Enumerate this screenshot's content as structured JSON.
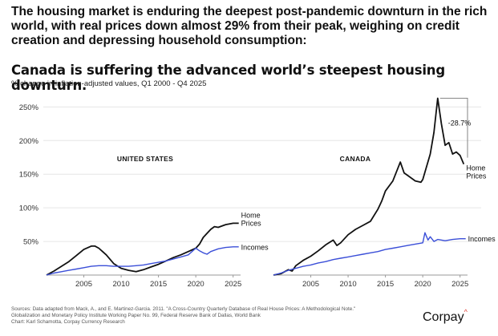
{
  "intro_text": "The housing market is enduring the deepest post-pandemic downturn in the rich world, with real prices down almost 29% from their peak, weighing on credit creation and depressing household consumption:",
  "chart_data": {
    "type": "line",
    "title": "Canada is suffering the advanced world’s steepest housing downturn.",
    "subtitle": "% change in inflation-adjusted values, Q1 2000 - Q4 2025",
    "ylim": [
      0,
      260
    ],
    "yticks": [
      50,
      100,
      150,
      200,
      250
    ],
    "ytick_labels": [
      "50%",
      "100%",
      "150%",
      "200%",
      "250%"
    ],
    "xticks": [
      2005,
      2010,
      2015,
      2020,
      2025
    ],
    "xlim": [
      2000,
      2026
    ],
    "grid": true,
    "colors": {
      "home_prices": "#111111",
      "incomes": "#3b4fd8",
      "axis": "#999999",
      "grid": "#e6e6e6"
    },
    "panels": [
      {
        "label": "UNITED STATES",
        "series": [
          {
            "name": "Home Prices",
            "label_lines": [
              "Home",
              "Prices"
            ],
            "points": [
              [
                2000,
                0
              ],
              [
                2001,
                6
              ],
              [
                2002,
                13
              ],
              [
                2003,
                20
              ],
              [
                2004,
                29
              ],
              [
                2005,
                38
              ],
              [
                2006,
                43
              ],
              [
                2006.5,
                43
              ],
              [
                2007,
                40
              ],
              [
                2008,
                30
              ],
              [
                2009,
                17
              ],
              [
                2010,
                10
              ],
              [
                2011,
                7
              ],
              [
                2012,
                5
              ],
              [
                2013,
                8
              ],
              [
                2014,
                12
              ],
              [
                2015,
                16
              ],
              [
                2016,
                21
              ],
              [
                2017,
                26
              ],
              [
                2018,
                30
              ],
              [
                2019,
                35
              ],
              [
                2020,
                40
              ],
              [
                2020.5,
                46
              ],
              [
                2021,
                56
              ],
              [
                2022,
                68
              ],
              [
                2022.5,
                72
              ],
              [
                2023,
                71
              ],
              [
                2024,
                75
              ],
              [
                2025,
                77
              ],
              [
                2025.75,
                77
              ]
            ]
          },
          {
            "name": "Incomes",
            "label_lines": [
              "Incomes"
            ],
            "points": [
              [
                2000,
                0
              ],
              [
                2001,
                3
              ],
              [
                2002,
                5
              ],
              [
                2003,
                7
              ],
              [
                2004,
                9
              ],
              [
                2005,
                11
              ],
              [
                2006,
                13
              ],
              [
                2007,
                14
              ],
              [
                2008,
                14
              ],
              [
                2009,
                13
              ],
              [
                2010,
                13
              ],
              [
                2011,
                13
              ],
              [
                2012,
                14
              ],
              [
                2013,
                15
              ],
              [
                2014,
                17
              ],
              [
                2015,
                19
              ],
              [
                2016,
                21
              ],
              [
                2017,
                24
              ],
              [
                2018,
                27
              ],
              [
                2019,
                30
              ],
              [
                2020,
                40
              ],
              [
                2020.5,
                36
              ],
              [
                2021,
                33
              ],
              [
                2021.5,
                31
              ],
              [
                2022,
                35
              ],
              [
                2023,
                39
              ],
              [
                2024,
                41
              ],
              [
                2025,
                42
              ],
              [
                2025.75,
                42
              ]
            ]
          }
        ]
      },
      {
        "label": "CANADA",
        "series": [
          {
            "name": "Home Prices",
            "label_lines": [
              "Home",
              "Prices"
            ],
            "points": [
              [
                2000,
                0
              ],
              [
                2001,
                2
              ],
              [
                2002,
                8
              ],
              [
                2002.5,
                6
              ],
              [
                2003,
                14
              ],
              [
                2004,
                22
              ],
              [
                2005,
                28
              ],
              [
                2006,
                36
              ],
              [
                2007,
                45
              ],
              [
                2008,
                52
              ],
              [
                2008.5,
                44
              ],
              [
                2009,
                48
              ],
              [
                2010,
                60
              ],
              [
                2011,
                68
              ],
              [
                2012,
                74
              ],
              [
                2013,
                80
              ],
              [
                2014,
                98
              ],
              [
                2014.5,
                110
              ],
              [
                2015,
                125
              ],
              [
                2016,
                140
              ],
              [
                2017,
                168
              ],
              [
                2017.5,
                152
              ],
              [
                2018,
                148
              ],
              [
                2019,
                140
              ],
              [
                2019.75,
                138
              ],
              [
                2020,
                142
              ],
              [
                2021,
                180
              ],
              [
                2021.5,
                212
              ],
              [
                2022,
                263
              ],
              [
                2022.5,
                225
              ],
              [
                2023,
                193
              ],
              [
                2023.5,
                197
              ],
              [
                2024,
                180
              ],
              [
                2024.5,
                183
              ],
              [
                2025,
                178
              ],
              [
                2025.5,
                165
              ]
            ]
          },
          {
            "name": "Incomes",
            "label_lines": [
              "Incomes"
            ],
            "points": [
              [
                2000,
                0
              ],
              [
                2001,
                3
              ],
              [
                2002,
                7
              ],
              [
                2003,
                10
              ],
              [
                2004,
                13
              ],
              [
                2005,
                15
              ],
              [
                2006,
                18
              ],
              [
                2007,
                20
              ],
              [
                2008,
                23
              ],
              [
                2009,
                25
              ],
              [
                2010,
                27
              ],
              [
                2011,
                29
              ],
              [
                2012,
                31
              ],
              [
                2013,
                33
              ],
              [
                2014,
                35
              ],
              [
                2015,
                38
              ],
              [
                2016,
                40
              ],
              [
                2017,
                42
              ],
              [
                2018,
                44
              ],
              [
                2019,
                46
              ],
              [
                2020,
                48
              ],
              [
                2020.3,
                63
              ],
              [
                2020.7,
                52
              ],
              [
                2021,
                57
              ],
              [
                2021.5,
                50
              ],
              [
                2022,
                53
              ],
              [
                2023,
                51
              ],
              [
                2024,
                53
              ],
              [
                2025,
                54
              ],
              [
                2025.75,
                54
              ]
            ]
          }
        ],
        "annotation": "-28.7%"
      }
    ]
  },
  "footer": {
    "sources": "Sources: Data adapted from Mack, A., and E. Martinez-Garcia. 2011. \"A Cross-Country Quarterly Database of Real House Prices: A Methodological Note.\" Globalization and Monetary Policy Institute Working Paper No. 99, Federal Reserve Bank of Dallas, World Bank",
    "credit": "Chart: Karl Schamotta, Corpay Currency Research"
  },
  "brand": {
    "name": "Corpay",
    "mark": "^"
  }
}
